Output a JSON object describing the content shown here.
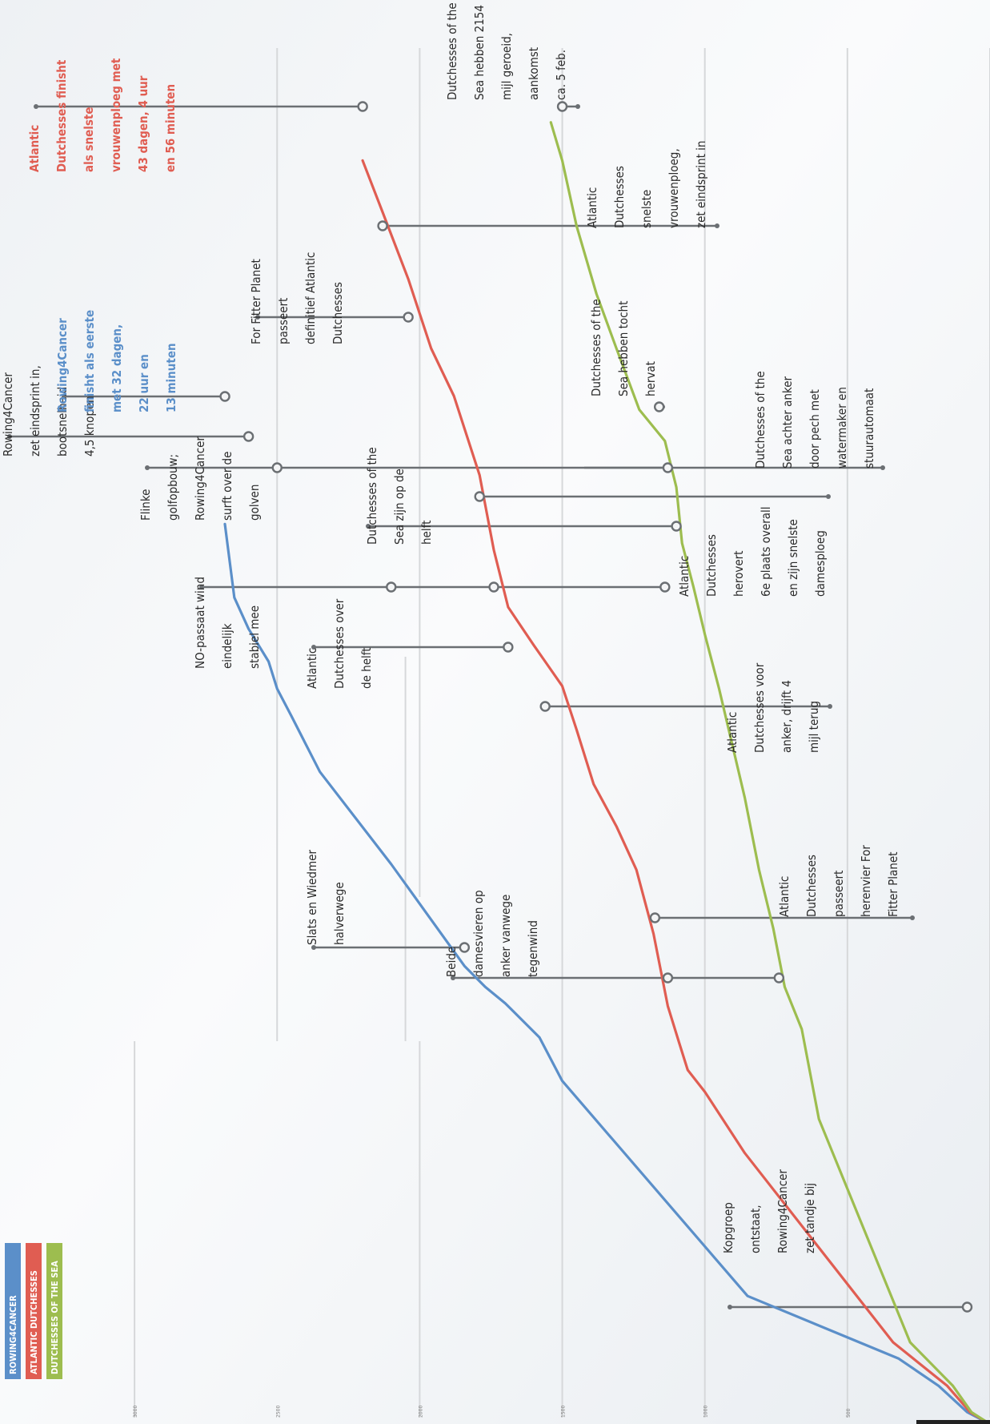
{
  "colors": {
    "Rowing4Cancer": "#5b8fc9",
    "Atlantic Dutchesses": "#e05d52",
    "Dutchesses of the Sea": "#9dbd4f",
    "leader": "#6b6f73",
    "grid": "#d6d8da"
  },
  "legend": [
    {
      "label": "ROWING4CANCER",
      "color": "#5b8fc9"
    },
    {
      "label": "ATLANTIC DUTCHESSES",
      "color": "#e05d52"
    },
    {
      "label": "DUTCHESSES OF THE SEA",
      "color": "#9dbd4f"
    }
  ],
  "chart_data": {
    "type": "line",
    "orientation": "rotated 90° clockwise (distance axis runs along the bottom edge, increasing to the left)",
    "title": "",
    "xlabel": "",
    "ylabel": "",
    "value_axis_ticks": [
      "3000",
      "2500",
      "2000",
      "1500",
      "1000",
      "500"
    ],
    "ylim": [
      0,
      3000
    ],
    "grid": true,
    "legend_position": "bottom-left",
    "series": [
      {
        "name": "ROWING4CANCER",
        "color": "#5b8fc9",
        "points": [
          [
            0.0,
            0
          ],
          [
            0.0087,
            80
          ],
          [
            0.028,
            180
          ],
          [
            0.048,
            320
          ],
          [
            0.094,
            850
          ],
          [
            0.252,
            1500
          ],
          [
            0.284,
            1580
          ],
          [
            0.309,
            1700
          ],
          [
            0.321,
            1770
          ],
          [
            0.3364,
            1843
          ],
          [
            0.4112,
            2100
          ],
          [
            0.479,
            2350
          ],
          [
            0.52,
            2450
          ],
          [
            0.54,
            2500
          ],
          [
            0.56,
            2530
          ],
          [
            0.584,
            2600
          ],
          [
            0.607,
            2650
          ],
          [
            0.661,
            2683
          ]
        ]
      },
      {
        "name": "ATLANTIC DUTCHESSES",
        "color": "#e05d52",
        "points": [
          [
            0.0,
            0
          ],
          [
            0.0087,
            70
          ],
          [
            0.028,
            150
          ],
          [
            0.06,
            340
          ],
          [
            0.199,
            860
          ],
          [
            0.244,
            1000
          ],
          [
            0.26,
            1060
          ],
          [
            0.28,
            1090
          ],
          [
            0.307,
            1130
          ],
          [
            0.36,
            1180
          ],
          [
            0.407,
            1240
          ],
          [
            0.439,
            1310
          ],
          [
            0.47,
            1390
          ],
          [
            0.51,
            1450
          ],
          [
            0.542,
            1500
          ],
          [
            0.56,
            1560
          ],
          [
            0.572,
            1600
          ],
          [
            0.6,
            1690
          ],
          [
            0.642,
            1740
          ],
          [
            0.697,
            1790
          ],
          [
            0.755,
            1880
          ],
          [
            0.79,
            1960
          ],
          [
            0.841,
            2040
          ],
          [
            0.89,
            2130
          ],
          [
            0.928,
            2200
          ]
        ]
      },
      {
        "name": "DUTCHESSES OF THE SEA",
        "color": "#9dbd4f",
        "points": [
          [
            0.0,
            0
          ],
          [
            0.0087,
            65
          ],
          [
            0.028,
            130
          ],
          [
            0.06,
            280
          ],
          [
            0.224,
            600
          ],
          [
            0.29,
            660
          ],
          [
            0.321,
            720
          ],
          [
            0.364,
            760
          ],
          [
            0.407,
            810
          ],
          [
            0.46,
            860
          ],
          [
            0.54,
            950
          ],
          [
            0.58,
            1000
          ],
          [
            0.615,
            1040
          ],
          [
            0.647,
            1080
          ],
          [
            0.688,
            1100
          ],
          [
            0.722,
            1140
          ],
          [
            0.745,
            1230
          ],
          [
            0.79,
            1310
          ],
          [
            0.83,
            1380
          ],
          [
            0.88,
            1450
          ],
          [
            0.928,
            1500
          ],
          [
            0.956,
            1540
          ]
        ]
      }
    ],
    "events": [
      {
        "series": "ROWING4CANCER",
        "day_frac": 0.0087,
        "distance": 80,
        "text": "Kopgroep ontstaat, Rowing4Cancer zet tandje bij"
      },
      {
        "series": "ATLANTIC DUTCHESSES",
        "day_frac": 0.307,
        "distance": 1130,
        "text": "Beide damesvieren op anker vanwege tegenwind"
      },
      {
        "series": "DUTCHESSES OF THE SEA",
        "day_frac": 0.307,
        "distance": 740,
        "text": ""
      },
      {
        "series": "ROWING4CANCER",
        "day_frac": 0.3364,
        "distance": 1843,
        "text": "Slats en Wiedmer halverwege"
      },
      {
        "series": "ATLANTIC DUTCHESSES",
        "day_frac": 0.358,
        "distance": 1175,
        "text": "Atlantic Dutchesses passeert herenvier For Fitter Planet"
      },
      {
        "series": "ATLANTIC DUTCHESSES",
        "day_frac": 0.56,
        "distance": 1560,
        "text": "Atlantic Dutchesses voor anker, drijft 4 mijl terug"
      },
      {
        "series": "ATLANTIC DUTCHESSES",
        "day_frac": 0.601,
        "distance": 1690,
        "text": "Atlantic Dutchesses over de helft"
      },
      {
        "series": "ROWING4CANCER",
        "day_frac": 0.642,
        "distance": 2100,
        "text": "NO-passaat wind eindelijk stabiel mee"
      },
      {
        "series": "ATLANTIC DUTCHESSES",
        "day_frac": 0.642,
        "distance": 1740,
        "text": ""
      },
      {
        "series": "DUTCHESSES OF THE SEA",
        "day_frac": 0.642,
        "distance": 1140,
        "text": ""
      },
      {
        "series": "DUTCHESSES OF THE SEA",
        "day_frac": 0.679,
        "distance": 1100,
        "text": "Dutchesses of the Sea zijn op de helft"
      },
      {
        "series": "ATLANTIC DUTCHESSES",
        "day_frac": 0.697,
        "distance": 1790,
        "text": "Atlantic Dutchesses herovert 6e plaats overall en zijn snelste damesploeg"
      },
      {
        "series": "ROWING4CANCER",
        "day_frac": 0.717,
        "distance": 2500,
        "text": "Flinke golfopbouw; Rowing4Cancer surft over de golven"
      },
      {
        "series": "DUTCHESSES OF THE SEA",
        "day_frac": 0.717,
        "distance": 1130,
        "text": "Dutchesses of the Sea achter anker door pech met watermaker en stuurautomaat"
      },
      {
        "series": "ROWING4CANCER",
        "day_frac": 0.738,
        "distance": 2600,
        "text": "Rowing4Cancer zet eindsprint in, bootsnelheid 4,5 knopen"
      },
      {
        "series": "DUTCHESSES OF THE SEA",
        "day_frac": 0.756,
        "distance": 1160,
        "text": "Dutchesses of the Sea hebben tocht hervat"
      },
      {
        "series": "ROWING4CANCER",
        "day_frac": 0.766,
        "distance": 2683,
        "text": "Rowing4Cancer finisht als eerste met 32 dagen, 22 uur en 13 minuten"
      },
      {
        "series": "ATLANTIC DUTCHESSES",
        "day_frac": 0.822,
        "distance": 2040,
        "text": "For Fitter Planet passeert definitief Atlantic Dutchesses"
      },
      {
        "series": "ATLANTIC DUTCHESSES",
        "day_frac": 0.886,
        "distance": 2130,
        "text": "Atlantic Dutchesses snelste vrouwenploeg, zet eindsprint in"
      },
      {
        "series": "ATLANTIC DUTCHESSES",
        "day_frac": 0.928,
        "distance": 2200,
        "text": "Atlantic Dutchesses finisht als snelste vrouwenploeg met 43 dagen, 4 uur en 56 minuten"
      },
      {
        "series": "DUTCHESSES OF THE SEA",
        "day_frac": 0.928,
        "distance": 1500,
        "text": "Dutchesses of the Sea hebben 2154 mijl geroeid, aankomst ca. 5 feb."
      }
    ]
  },
  "annotations": [
    {
      "id": "kopgroep",
      "lines": [
        "Kopgroep",
        "ontstaat,",
        "Rowing4Cancer",
        "zet tandje bij"
      ],
      "style": "normal"
    },
    {
      "id": "beide",
      "lines": [
        "Beide",
        "damesvieren op",
        "anker vanwege",
        "tegenwind"
      ],
      "style": "normal"
    },
    {
      "id": "slats",
      "lines": [
        "Slats en Wiedmer",
        "halverwege"
      ],
      "style": "normal"
    },
    {
      "id": "passeert-herenvier",
      "lines": [
        "Atlantic",
        "Dutchesses",
        "passeert",
        "herenvier For",
        "Fitter Planet"
      ],
      "style": "normal"
    },
    {
      "id": "voor-anker",
      "lines": [
        "Atlantic",
        "Dutchesses voor",
        "anker, drijft 4",
        "mijl terug"
      ],
      "style": "normal"
    },
    {
      "id": "ad-helft",
      "lines": [
        "Atlantic",
        "Dutchesses over",
        "de helft"
      ],
      "style": "normal"
    },
    {
      "id": "no-passaat",
      "lines": [
        "NO-passaat wind",
        "eindelijk",
        "stabiel mee"
      ],
      "style": "normal"
    },
    {
      "id": "herovert",
      "lines": [
        "Atlantic",
        "Dutchesses",
        "herovert",
        "6e plaats overall",
        "en zijn snelste",
        "damesploeg"
      ],
      "style": "normal"
    },
    {
      "id": "dots-helft",
      "lines": [
        "Dutchesses of the",
        "Sea zijn op de",
        "helft"
      ],
      "style": "normal"
    },
    {
      "id": "golfopbouw",
      "lines": [
        "Flinke",
        "golfopbouw;",
        "Rowing4Cancer",
        "surft over de",
        "golven"
      ],
      "style": "normal"
    },
    {
      "id": "achter-anker",
      "lines": [
        "Dutchesses of the",
        "Sea achter anker",
        "door pech met",
        "watermaker en",
        "stuurautomaat"
      ],
      "style": "normal"
    },
    {
      "id": "eindsprint-r4c",
      "lines": [
        "Rowing4Cancer",
        "zet eindsprint in,",
        "bootsnelheid",
        "4,5 knopen"
      ],
      "style": "normal"
    },
    {
      "id": "hervat",
      "lines": [
        "Dutchesses of the",
        "Sea hebben tocht",
        "hervat"
      ],
      "style": "normal"
    },
    {
      "id": "r4c-finish",
      "lines": [
        "Rowing4Cancer",
        "finisht als eerste",
        "met 32 dagen,",
        "22 uur en",
        "13 minuten"
      ],
      "style": "blue"
    },
    {
      "id": "ffp-passeert",
      "lines": [
        "For Fitter Planet",
        "passeert",
        "definitief Atlantic",
        "Dutchesses"
      ],
      "style": "normal"
    },
    {
      "id": "ad-snelste",
      "lines": [
        "Atlantic",
        "Dutchesses",
        "snelste",
        "vrouwenploeg,",
        "zet eindsprint in"
      ],
      "style": "normal"
    },
    {
      "id": "ad-finish",
      "lines": [
        "Atlantic",
        "Dutchesses finisht",
        "als snelste",
        "vrouwenploeg met",
        "43 dagen, 4 uur",
        "en 56 minuten"
      ],
      "style": "red"
    },
    {
      "id": "dots-2154",
      "lines": [
        "Dutchesses of the",
        "Sea hebben 2154",
        "mijl geroeid,",
        "aankomst",
        "ca. 5 feb."
      ],
      "style": "normal"
    }
  ]
}
